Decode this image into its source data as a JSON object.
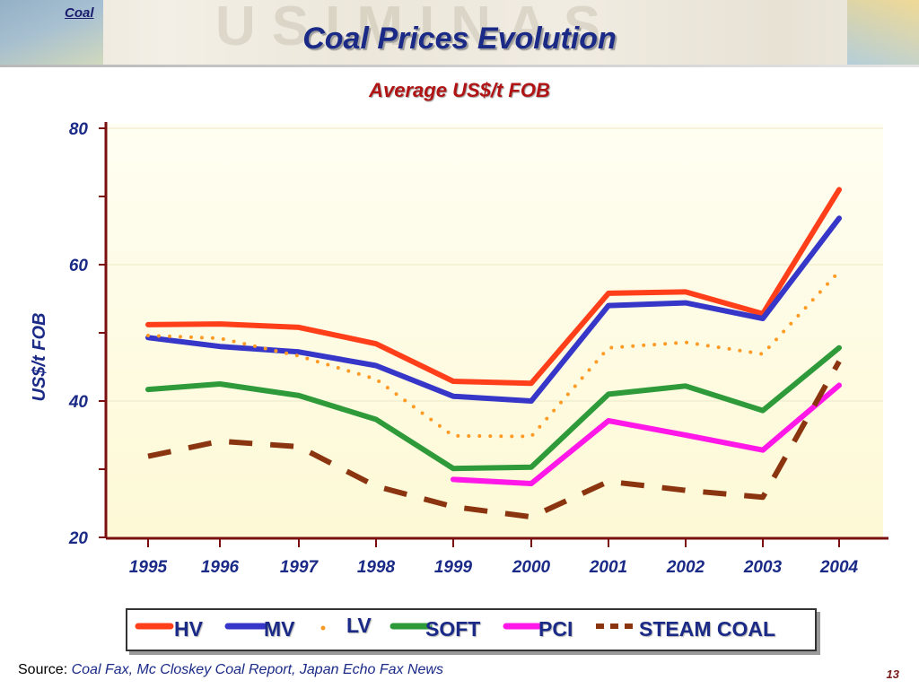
{
  "header": {
    "section": "Coal",
    "title": "Coal Prices Evolution"
  },
  "colors": {
    "HV": "#ff3f1a",
    "MV": "#3636c8",
    "LV": "#ff9a24",
    "SOFT": "#2e9a3a",
    "PCI": "#ff18e8",
    "STEAM COAL": "#8b3510"
  },
  "chart_data": {
    "type": "line",
    "title": "Average US$/t FOB",
    "ylabel": "US$/t FOB",
    "xlabel": "",
    "categories": [
      "1995",
      "1996",
      "1997",
      "1998",
      "1999",
      "2000",
      "2001",
      "2002",
      "2003",
      "2004"
    ],
    "ylim": [
      20,
      80
    ],
    "yticks": [
      20,
      40,
      60,
      80
    ],
    "ytick_labels": [
      "20",
      "40",
      "60",
      "80"
    ],
    "grid": false,
    "legend_position": "bottom",
    "series": [
      {
        "name": "HV",
        "style": "solid",
        "values": [
          51.2,
          51.3,
          50.8,
          48.4,
          42.9,
          42.6,
          55.8,
          56.0,
          52.8,
          71.0
        ]
      },
      {
        "name": "MV",
        "style": "solid",
        "values": [
          49.3,
          48.0,
          47.2,
          45.2,
          40.7,
          40.0,
          54.0,
          54.4,
          52.1,
          66.8
        ]
      },
      {
        "name": "LV",
        "style": "dotted",
        "values": [
          49.6,
          49.2,
          46.6,
          43.2,
          34.9,
          34.8,
          47.8,
          48.6,
          46.9,
          59.0
        ]
      },
      {
        "name": "SOFT",
        "style": "solid",
        "values": [
          41.7,
          42.5,
          40.8,
          37.3,
          30.1,
          30.3,
          41.0,
          42.2,
          38.6,
          47.8
        ]
      },
      {
        "name": "PCI",
        "style": "solid",
        "values": [
          null,
          null,
          null,
          null,
          28.5,
          27.9,
          37.1,
          35.0,
          32.8,
          42.3
        ]
      },
      {
        "name": "STEAM COAL",
        "style": "dashed",
        "values": [
          31.9,
          34.1,
          33.3,
          27.5,
          24.5,
          23.0,
          28.2,
          26.9,
          25.9,
          45.8
        ]
      }
    ]
  },
  "legend": {
    "items": [
      "HV",
      "MV",
      "LV",
      "SOFT",
      "PCI",
      "STEAM COAL"
    ]
  },
  "footer": {
    "source_prefix": "Source:",
    "source_text": "Coal Fax, Mc Closkey Coal Report, Japan Echo Fax News",
    "page_number": "13"
  }
}
